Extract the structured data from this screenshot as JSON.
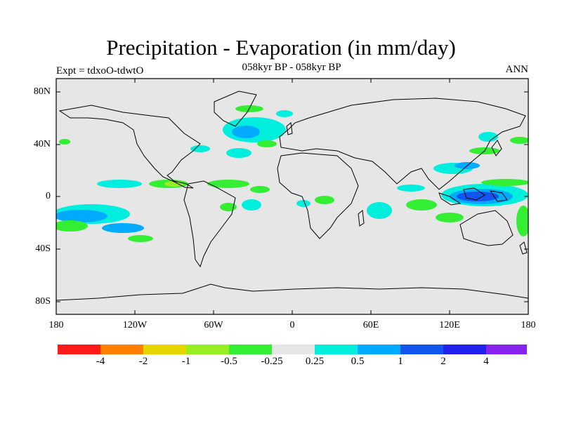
{
  "title": "Precipitation - Evaporation (in mm/day)",
  "subtitle": "058kyr BP - 058kyr BP",
  "experiment": "Expt = tdxoO-tdwtO",
  "season": "ANN",
  "lat_labels": [
    "80N",
    "40N",
    "0",
    "40S",
    "80S"
  ],
  "lon_labels": [
    "180",
    "120W",
    "60W",
    "0",
    "60E",
    "120E",
    "180"
  ],
  "colorbar": {
    "colors": [
      "#ff1a1a",
      "#ff8000",
      "#e6d600",
      "#99ee22",
      "#33ee33",
      "#e6e6e6",
      "#00eedd",
      "#00aaff",
      "#1155ee",
      "#2222ee",
      "#8822ee"
    ],
    "labels": [
      "-4",
      "-2",
      "-1",
      "-0.5",
      "-0.25",
      "0.25",
      "0.5",
      "1",
      "2",
      "4"
    ]
  },
  "map": {
    "background": "#e6e6e6",
    "lat_range": [
      -90,
      90
    ],
    "lon_range": [
      -180,
      180
    ]
  }
}
